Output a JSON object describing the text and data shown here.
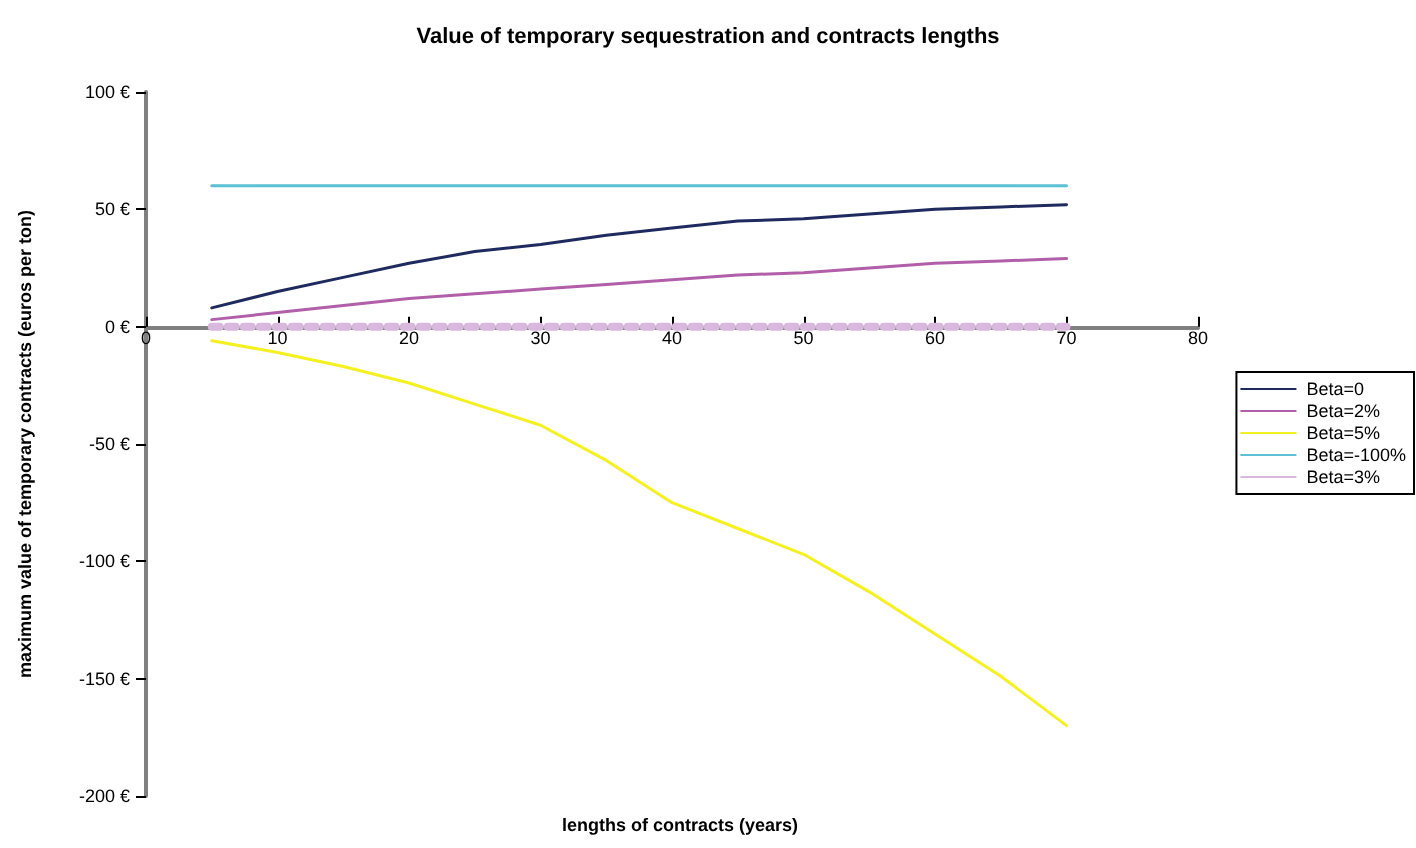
{
  "chart_data": {
    "type": "line",
    "title": "Value of temporary sequestration and contracts lengths",
    "xlabel": "lengths of contracts (years)",
    "ylabel": "maximum value of temporary contracts (euros per ton)",
    "x": [
      5,
      10,
      15,
      20,
      25,
      30,
      35,
      40,
      45,
      50,
      55,
      60,
      65,
      70
    ],
    "series": [
      {
        "name": "Beta=0",
        "color": "#1f2a5e",
        "values": [
          8,
          15,
          21,
          27,
          32,
          35,
          39,
          42,
          45,
          46,
          48,
          50,
          51,
          52
        ]
      },
      {
        "name": "Beta=2%",
        "color": "#b05fa8",
        "values": [
          3,
          6,
          9,
          12,
          14,
          16,
          18,
          20,
          22,
          23,
          25,
          27,
          28,
          29
        ]
      },
      {
        "name": "Beta=5%",
        "color": "#f5f020",
        "values": [
          -6,
          -11,
          -17,
          -24,
          -33,
          -42,
          -57,
          -75,
          -86,
          -97,
          -113,
          -131,
          -149,
          -170
        ]
      },
      {
        "name": "Beta=-100%",
        "color": "#5bc0d4",
        "values": [
          60,
          60,
          60,
          60,
          60,
          60,
          60,
          60,
          60,
          60,
          60,
          60,
          60,
          60
        ]
      },
      {
        "name": "Beta=3%",
        "color": "#d9b8dd",
        "line_style": "dotted",
        "values": [
          0,
          0,
          0,
          0,
          0,
          0,
          0,
          0,
          0,
          0,
          0,
          0,
          0,
          0
        ]
      }
    ],
    "xlim": [
      0,
      80
    ],
    "xticks": [
      0,
      10,
      20,
      30,
      40,
      50,
      60,
      70,
      80
    ],
    "ylim": [
      -200,
      100
    ],
    "yticks": [
      {
        "value": -200,
        "label": "-200 €"
      },
      {
        "value": -150,
        "label": "-150 €"
      },
      {
        "value": -100,
        "label": "-100 €"
      },
      {
        "value": -50,
        "label": "-50 €"
      },
      {
        "value": 0,
        "label": "0 €"
      },
      {
        "value": 50,
        "label": "50 €"
      },
      {
        "value": 100,
        "label": "100 €"
      }
    ],
    "grid": false,
    "legend": "right",
    "marker": "none",
    "line_style": "solid"
  }
}
